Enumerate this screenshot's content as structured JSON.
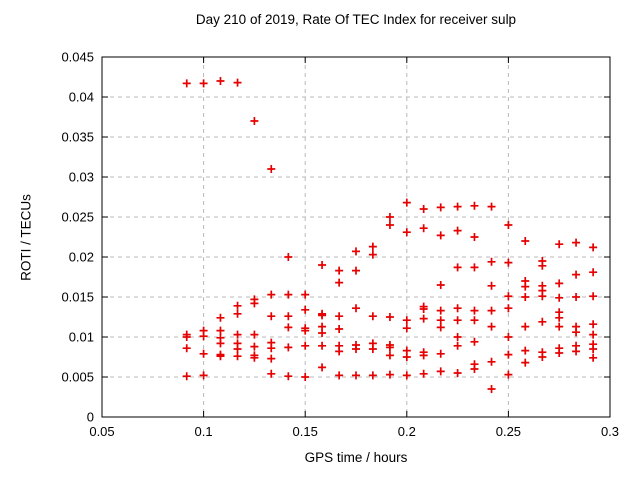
{
  "window": {
    "background": "#ffffff"
  },
  "chart_data": {
    "type": "scatter",
    "title": "Day 210 of 2019, Rate Of TEC Index for receiver sulp",
    "xlabel": "GPS time / hours",
    "ylabel": "ROTI / TECUs",
    "xlim": [
      0.05,
      0.3
    ],
    "ylim": [
      0,
      0.045
    ],
    "grid": true,
    "grid_style": "dashed",
    "grid_color": "#b8b8b8",
    "frame_color": "#000000",
    "marker": "plus",
    "marker_color": "#e60000",
    "x_tick_labels": [
      "0.05",
      "0.1",
      "0.15",
      "0.2",
      "0.25",
      "0.3"
    ],
    "y_tick_labels": [
      "0",
      "0.005",
      "0.01",
      "0.015",
      "0.02",
      "0.025",
      "0.03",
      "0.035",
      "0.04",
      "0.045"
    ],
    "series": [
      {
        "name": "ROTI",
        "points": [
          [
            0.0917,
            0.0417
          ],
          [
            0.0917,
            0.0103
          ],
          [
            0.0917,
            0.01
          ],
          [
            0.0917,
            0.0086
          ],
          [
            0.0917,
            0.0051
          ],
          [
            0.1,
            0.0417
          ],
          [
            0.1,
            0.0108
          ],
          [
            0.1,
            0.0101
          ],
          [
            0.1,
            0.0079
          ],
          [
            0.1,
            0.0052
          ],
          [
            0.1083,
            0.042
          ],
          [
            0.1083,
            0.0124
          ],
          [
            0.1083,
            0.0108
          ],
          [
            0.1083,
            0.0099
          ],
          [
            0.1083,
            0.0092
          ],
          [
            0.1083,
            0.0078
          ],
          [
            0.1083,
            0.0076
          ],
          [
            0.1167,
            0.0418
          ],
          [
            0.1167,
            0.0139
          ],
          [
            0.1167,
            0.0129
          ],
          [
            0.1167,
            0.0103
          ],
          [
            0.1167,
            0.0092
          ],
          [
            0.1167,
            0.0085
          ],
          [
            0.1167,
            0.0076
          ],
          [
            0.125,
            0.037
          ],
          [
            0.125,
            0.0147
          ],
          [
            0.125,
            0.0142
          ],
          [
            0.125,
            0.0103
          ],
          [
            0.125,
            0.0088
          ],
          [
            0.125,
            0.0077
          ],
          [
            0.125,
            0.0074
          ],
          [
            0.1333,
            0.031
          ],
          [
            0.1333,
            0.0153
          ],
          [
            0.1333,
            0.0126
          ],
          [
            0.1333,
            0.0093
          ],
          [
            0.1333,
            0.0086
          ],
          [
            0.1333,
            0.0073
          ],
          [
            0.1333,
            0.0054
          ],
          [
            0.1417,
            0.02
          ],
          [
            0.1417,
            0.0153
          ],
          [
            0.1417,
            0.0126
          ],
          [
            0.1417,
            0.0112
          ],
          [
            0.1417,
            0.0087
          ],
          [
            0.1417,
            0.0051
          ],
          [
            0.15,
            0.0153
          ],
          [
            0.15,
            0.0134
          ],
          [
            0.15,
            0.0111
          ],
          [
            0.15,
            0.0108
          ],
          [
            0.15,
            0.0089
          ],
          [
            0.15,
            0.005
          ],
          [
            0.1583,
            0.019
          ],
          [
            0.1583,
            0.0129
          ],
          [
            0.1583,
            0.0127
          ],
          [
            0.1583,
            0.0113
          ],
          [
            0.1583,
            0.0105
          ],
          [
            0.1583,
            0.0089
          ],
          [
            0.1583,
            0.0062
          ],
          [
            0.1667,
            0.0183
          ],
          [
            0.1667,
            0.0168
          ],
          [
            0.1667,
            0.0126
          ],
          [
            0.1667,
            0.011
          ],
          [
            0.1667,
            0.0089
          ],
          [
            0.1667,
            0.0082
          ],
          [
            0.1667,
            0.0052
          ],
          [
            0.175,
            0.0207
          ],
          [
            0.175,
            0.0183
          ],
          [
            0.175,
            0.0136
          ],
          [
            0.175,
            0.009
          ],
          [
            0.175,
            0.0085
          ],
          [
            0.175,
            0.0052
          ],
          [
            0.1833,
            0.0213
          ],
          [
            0.1833,
            0.0203
          ],
          [
            0.1833,
            0.0126
          ],
          [
            0.1833,
            0.0092
          ],
          [
            0.1833,
            0.0085
          ],
          [
            0.1833,
            0.0052
          ],
          [
            0.1917,
            0.025
          ],
          [
            0.1917,
            0.024
          ],
          [
            0.1917,
            0.0125
          ],
          [
            0.1917,
            0.009
          ],
          [
            0.1917,
            0.0087
          ],
          [
            0.1917,
            0.0077
          ],
          [
            0.1917,
            0.0053
          ],
          [
            0.2,
            0.0268
          ],
          [
            0.2,
            0.0231
          ],
          [
            0.2,
            0.0121
          ],
          [
            0.2,
            0.0111
          ],
          [
            0.2,
            0.0083
          ],
          [
            0.2,
            0.0075
          ],
          [
            0.2,
            0.0052
          ],
          [
            0.2083,
            0.026
          ],
          [
            0.2083,
            0.0236
          ],
          [
            0.2083,
            0.0138
          ],
          [
            0.2083,
            0.0135
          ],
          [
            0.2083,
            0.0123
          ],
          [
            0.2083,
            0.0081
          ],
          [
            0.2083,
            0.0077
          ],
          [
            0.2083,
            0.0054
          ],
          [
            0.2167,
            0.0262
          ],
          [
            0.2167,
            0.0227
          ],
          [
            0.2167,
            0.0165
          ],
          [
            0.2167,
            0.0133
          ],
          [
            0.2167,
            0.0121
          ],
          [
            0.2167,
            0.0112
          ],
          [
            0.2167,
            0.0079
          ],
          [
            0.2167,
            0.0057
          ],
          [
            0.225,
            0.0263
          ],
          [
            0.225,
            0.0233
          ],
          [
            0.225,
            0.0187
          ],
          [
            0.225,
            0.0136
          ],
          [
            0.225,
            0.0121
          ],
          [
            0.225,
            0.01
          ],
          [
            0.225,
            0.0089
          ],
          [
            0.225,
            0.0055
          ],
          [
            0.2333,
            0.0264
          ],
          [
            0.2333,
            0.0225
          ],
          [
            0.2333,
            0.0187
          ],
          [
            0.2333,
            0.0133
          ],
          [
            0.2333,
            0.0121
          ],
          [
            0.2333,
            0.0094
          ],
          [
            0.2333,
            0.0066
          ],
          [
            0.2333,
            0.006
          ],
          [
            0.2417,
            0.0263
          ],
          [
            0.2417,
            0.0194
          ],
          [
            0.2417,
            0.0164
          ],
          [
            0.2417,
            0.0133
          ],
          [
            0.2417,
            0.0113
          ],
          [
            0.2417,
            0.0069
          ],
          [
            0.2417,
            0.0035
          ],
          [
            0.25,
            0.024
          ],
          [
            0.25,
            0.0193
          ],
          [
            0.25,
            0.0151
          ],
          [
            0.25,
            0.0136
          ],
          [
            0.25,
            0.01
          ],
          [
            0.25,
            0.0078
          ],
          [
            0.25,
            0.0053
          ],
          [
            0.2583,
            0.022
          ],
          [
            0.2583,
            0.017
          ],
          [
            0.2583,
            0.0163
          ],
          [
            0.2583,
            0.015
          ],
          [
            0.2583,
            0.0113
          ],
          [
            0.2583,
            0.0083
          ],
          [
            0.2583,
            0.0068
          ],
          [
            0.2667,
            0.0195
          ],
          [
            0.2667,
            0.0189
          ],
          [
            0.2667,
            0.0164
          ],
          [
            0.2667,
            0.0158
          ],
          [
            0.2667,
            0.0151
          ],
          [
            0.2667,
            0.0119
          ],
          [
            0.2667,
            0.0081
          ],
          [
            0.2667,
            0.0075
          ],
          [
            0.275,
            0.0216
          ],
          [
            0.275,
            0.0167
          ],
          [
            0.275,
            0.0149
          ],
          [
            0.275,
            0.0131
          ],
          [
            0.275,
            0.0124
          ],
          [
            0.275,
            0.0113
          ],
          [
            0.275,
            0.0086
          ],
          [
            0.275,
            0.008
          ],
          [
            0.2833,
            0.0218
          ],
          [
            0.2833,
            0.0178
          ],
          [
            0.2833,
            0.015
          ],
          [
            0.2833,
            0.0113
          ],
          [
            0.2833,
            0.0106
          ],
          [
            0.2833,
            0.0089
          ],
          [
            0.2833,
            0.0082
          ],
          [
            0.2917,
            0.0212
          ],
          [
            0.2917,
            0.0181
          ],
          [
            0.2917,
            0.0151
          ],
          [
            0.2917,
            0.0116
          ],
          [
            0.2917,
            0.0103
          ],
          [
            0.2917,
            0.0091
          ],
          [
            0.2917,
            0.0085
          ],
          [
            0.2917,
            0.0074
          ]
        ]
      }
    ]
  }
}
